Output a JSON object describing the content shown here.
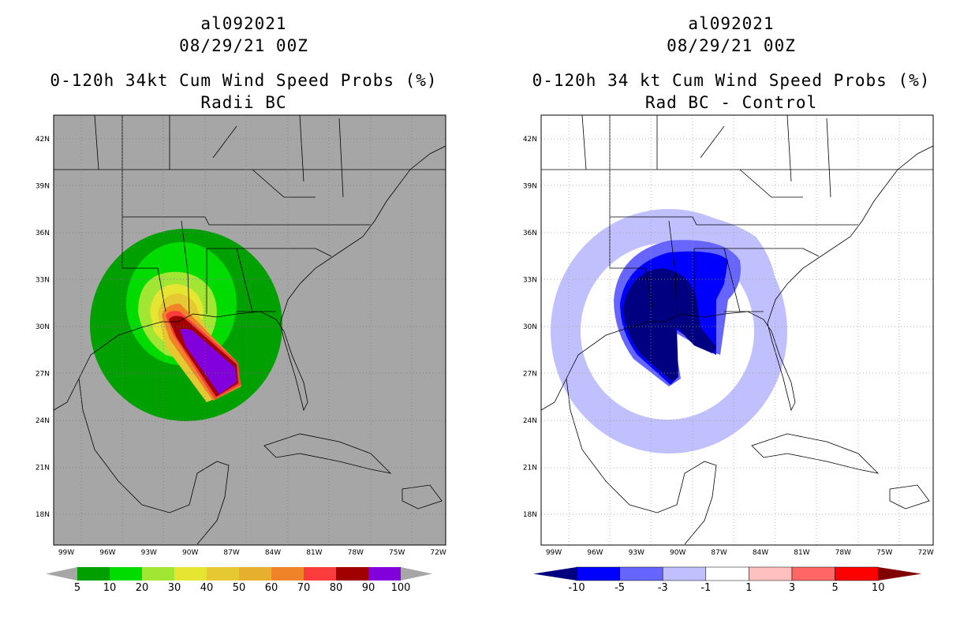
{
  "left": {
    "title_line1": "al092021",
    "title_line2": "08/29/21 00Z",
    "title_line3": "0-120h 34kt Cum Wind Speed Probs (%)",
    "title_line4": "Radii BC",
    "background": "#a6a6a6",
    "colorbar": {
      "colors": [
        "#00a000",
        "#00dc00",
        "#a0e632",
        "#e6e632",
        "#e6c832",
        "#e6af2d",
        "#f08228",
        "#fa3c3c",
        "#a00000",
        "#8200dc"
      ],
      "labels": [
        "5",
        "10",
        "20",
        "30",
        "40",
        "50",
        "60",
        "70",
        "80",
        "90",
        "100"
      ]
    }
  },
  "right": {
    "title_line1": "al092021",
    "title_line2": "08/29/21 00Z",
    "title_line3": "0-120h 34 kt Cum Wind Speed Probs (%)",
    "title_line4": "Rad BC - Control",
    "background": "#ffffff",
    "colorbar": {
      "colors": [
        "#000080",
        "#0000ff",
        "#6666ff",
        "#c0c0ff",
        "#ffffff",
        "#ffc0c0",
        "#ff6666",
        "#ff0000",
        "#800000"
      ],
      "labels": [
        "-10",
        "-5",
        "-3",
        "-1",
        "1",
        "3",
        "5",
        "10"
      ]
    }
  },
  "lat_labels": [
    "42N",
    "39N",
    "36N",
    "33N",
    "30N",
    "27N",
    "24N",
    "21N",
    "18N"
  ],
  "lon_labels": [
    "99W",
    "96W",
    "93W",
    "90W",
    "87W",
    "84W",
    "81W",
    "78W",
    "75W",
    "72W"
  ]
}
